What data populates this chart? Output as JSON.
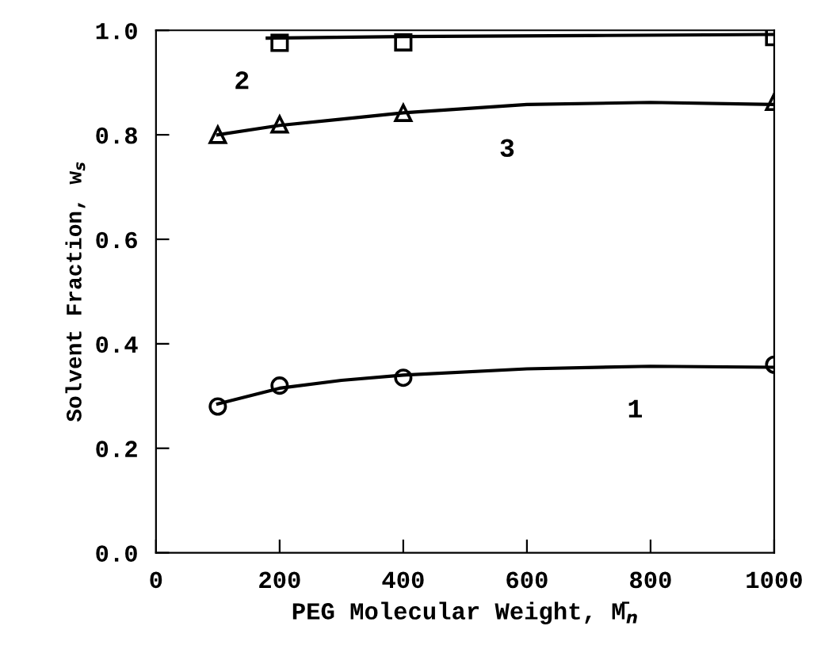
{
  "chart_data": {
    "type": "scatter",
    "xlabel": "PEG Molecular Weight, M̄$_{n}$",
    "ylabel": "Solvent Fraction, w$_{s}$",
    "xlim": [
      0,
      1000
    ],
    "ylim": [
      0,
      1.0
    ],
    "xticks": [
      0,
      200,
      400,
      600,
      800,
      1000
    ],
    "yticks": [
      {
        "value": 0,
        "label": "0.0"
      },
      0.2,
      0.4,
      0.6,
      0.8,
      {
        "value": 1.0,
        "label": "1.0"
      }
    ],
    "grid": false,
    "series": [
      {
        "marker": "circle",
        "color": "#000000",
        "x": [
          100,
          200,
          400,
          1000
        ],
        "values": [
          0.28,
          0.32,
          0.335,
          0.36
        ]
      },
      {
        "marker": "square",
        "color": "#000000",
        "x": [
          200,
          400,
          1000
        ],
        "values": [
          0.976,
          0.977,
          0.987
        ]
      },
      {
        "marker": "triangle",
        "color": "#000000",
        "x": [
          100,
          200,
          400,
          1000
        ],
        "values": [
          0.8,
          0.82,
          0.842,
          0.863
        ]
      },
      {
        "type": "line",
        "name": "1",
        "marker": "none",
        "color": "#000000",
        "x": [
          100,
          200,
          300,
          400,
          600,
          800,
          1000
        ],
        "values": [
          0.285,
          0.315,
          0.33,
          0.34,
          0.352,
          0.357,
          0.355
        ]
      },
      {
        "type": "line",
        "name": "2",
        "marker": "none",
        "color": "#000000",
        "x": [
          180,
          400,
          700,
          1000
        ],
        "values": [
          0.985,
          0.988,
          0.99,
          0.992
        ]
      },
      {
        "type": "line",
        "name": "3",
        "marker": "none",
        "color": "#000000",
        "x": [
          100,
          200,
          300,
          400,
          600,
          800,
          1000
        ],
        "values": [
          0.8,
          0.818,
          0.83,
          0.842,
          0.858,
          0.862,
          0.858
        ]
      }
    ]
  }
}
